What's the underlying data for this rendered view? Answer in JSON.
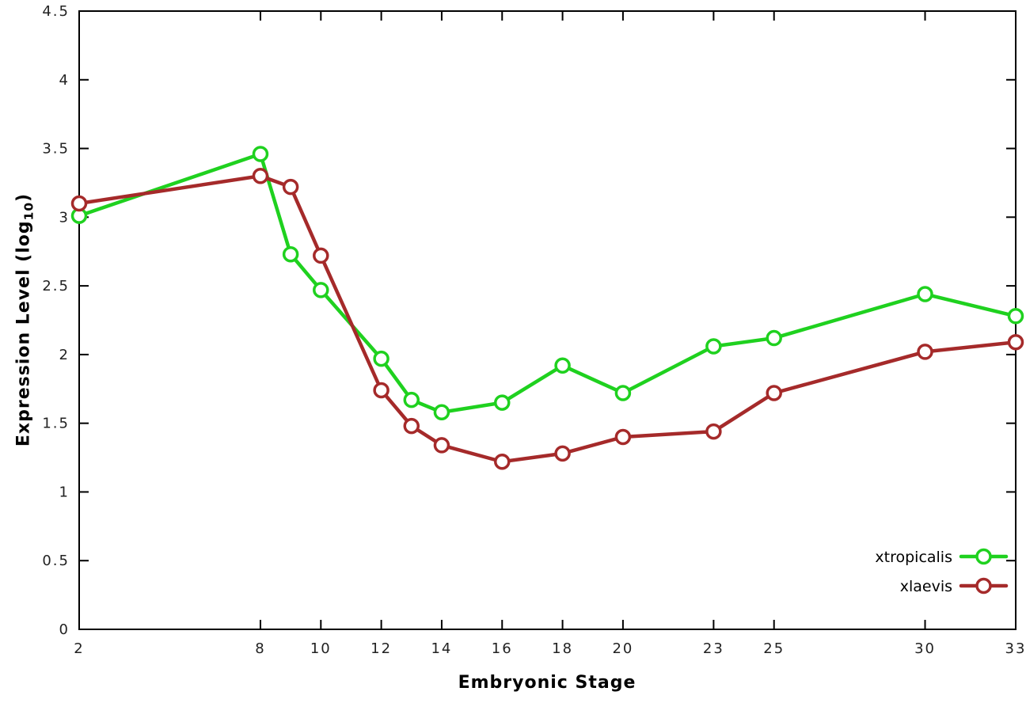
{
  "figure": {
    "xlabel": "Embryonic Stage",
    "ylabel_prefix": "Expression Level (log",
    "ylabel_sub": "10",
    "ylabel_suffix": ")",
    "background": "#ffffff",
    "axis_color": "#000000",
    "tick_label_color": "#222222"
  },
  "chart_data": {
    "type": "line",
    "title": "",
    "xlabel": "Embryonic Stage",
    "ylabel": "Expression Level (log10)",
    "x": [
      2,
      8,
      9,
      10,
      12,
      13,
      14,
      16,
      18,
      20,
      23,
      25,
      30,
      33
    ],
    "series": [
      {
        "name": "xtropicalis",
        "color": "#1fd11f",
        "values": [
          3.01,
          3.46,
          2.73,
          2.47,
          1.97,
          1.67,
          1.58,
          1.65,
          1.92,
          1.72,
          2.06,
          2.12,
          2.44,
          2.28
        ]
      },
      {
        "name": "xlaevis",
        "color": "#a52a2a",
        "values": [
          3.1,
          3.3,
          3.22,
          2.72,
          1.74,
          1.48,
          1.34,
          1.22,
          1.28,
          1.4,
          1.44,
          1.72,
          2.02,
          2.09
        ]
      }
    ],
    "xlim": [
      2,
      33
    ],
    "ylim": [
      0,
      4.5
    ],
    "xticks": [
      2,
      8,
      10,
      12,
      14,
      16,
      18,
      20,
      23,
      25,
      30,
      33
    ],
    "xtick_labels": [
      "2",
      "8",
      "10",
      "12",
      "14",
      "16",
      "18",
      "20",
      "23",
      "25",
      "30",
      "33"
    ],
    "yticks": [
      0,
      0.5,
      1,
      1.5,
      2,
      2.5,
      3,
      3.5,
      4,
      4.5
    ],
    "ytick_labels": [
      "0",
      "0.5",
      "1",
      "1.5",
      "2",
      "2.5",
      "3",
      "3.5",
      "4",
      "4.5"
    ],
    "grid": false,
    "legend_position": "bottom-right",
    "marker": "open-circle"
  }
}
